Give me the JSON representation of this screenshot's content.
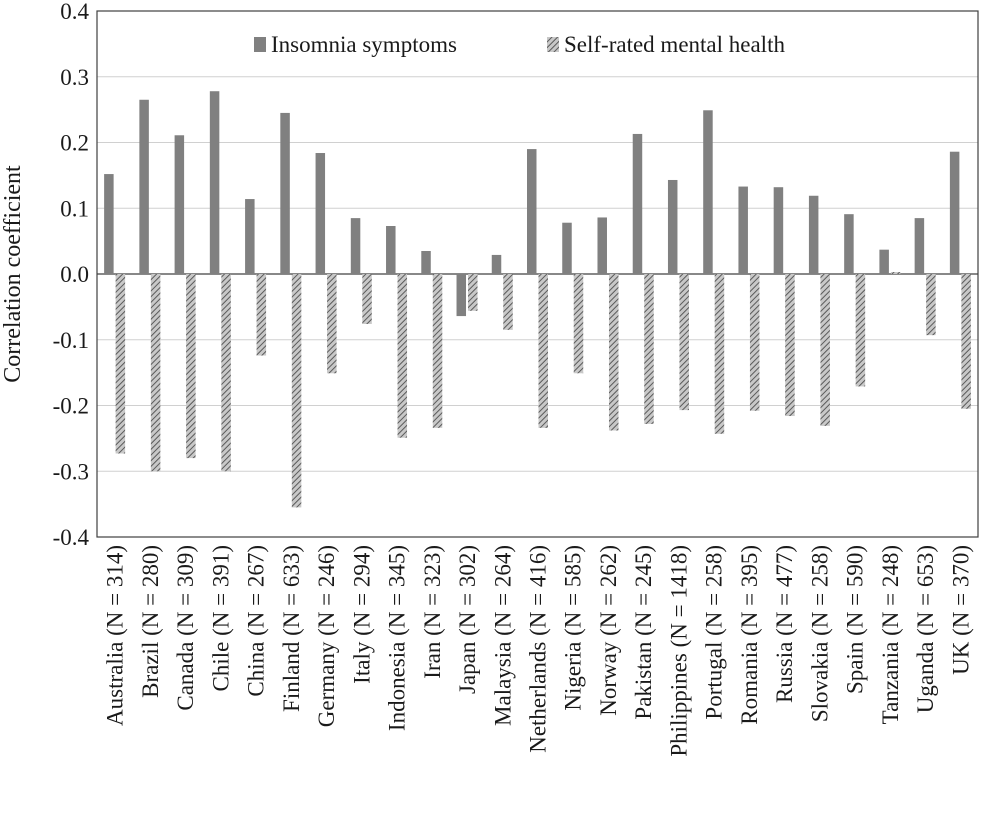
{
  "chart_data": {
    "type": "bar",
    "title": "",
    "xlabel": "",
    "ylabel": "Correlation coefficient",
    "ylim": [
      -0.4,
      0.4
    ],
    "yticks": [
      0.4,
      0.3,
      0.2,
      0.1,
      0.0,
      -0.1,
      -0.2,
      -0.3,
      -0.4
    ],
    "ytick_labels": [
      "0.4",
      "0.3",
      "0.2",
      "0.1",
      "0.0",
      "-0.1",
      "-0.2",
      "-0.3",
      "-0.4"
    ],
    "grid": true,
    "legend_position": "top",
    "categories": [
      "Australia (N = 314)",
      "Brazil (N = 280)",
      "Canada (N = 309)",
      "Chile (N = 391)",
      "China (N = 267)",
      "Finland (N = 633)",
      "Germany (N = 246)",
      "Italy (N = 294)",
      "Indonesia (N = 345)",
      "Iran (N = 323)",
      "Japan (N = 302)",
      "Malaysia (N = 264)",
      "Netherlands (N = 416)",
      "Nigeria (N = 585)",
      "Norway (N = 262)",
      "Pakistan (N = 245)",
      "Philippines (N = 1418)",
      "Portugal (N = 258)",
      "Romania (N = 395)",
      "Russia (N = 477)",
      "Slovakia (N = 258)",
      "Spain (N = 590)",
      "Tanzania (N = 248)",
      "Uganda (N = 653)",
      "UK (N = 370)"
    ],
    "series": [
      {
        "name": "Insomnia symptoms",
        "color": "#808080",
        "pattern": "solid",
        "values": [
          0.152,
          0.265,
          0.211,
          0.278,
          0.114,
          0.245,
          0.184,
          0.085,
          0.073,
          0.035,
          -0.064,
          0.029,
          0.19,
          0.078,
          0.086,
          0.213,
          0.143,
          0.249,
          0.133,
          0.132,
          0.119,
          0.091,
          0.037,
          0.085,
          0.186
        ]
      },
      {
        "name": "Self-rated mental health",
        "color": "#9a9a9a",
        "pattern": "hatched",
        "values": [
          -0.273,
          -0.3,
          -0.28,
          -0.3,
          -0.124,
          -0.355,
          -0.151,
          -0.076,
          -0.249,
          -0.234,
          -0.056,
          -0.085,
          -0.234,
          -0.151,
          -0.238,
          -0.228,
          -0.207,
          -0.243,
          -0.208,
          -0.216,
          -0.231,
          -0.171,
          0.003,
          -0.093,
          -0.205
        ]
      }
    ]
  }
}
